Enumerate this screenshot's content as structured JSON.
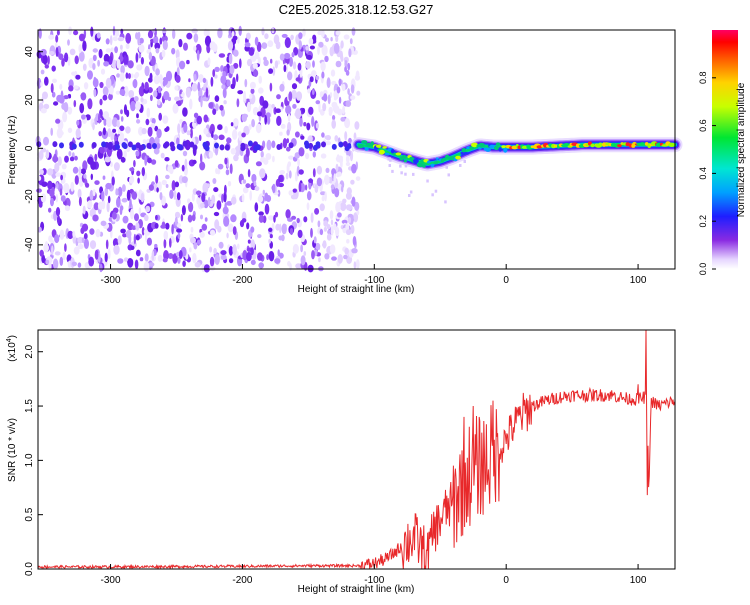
{
  "title": "C2E5.2025.318.12.53.G27",
  "chart_data": [
    {
      "type": "heatmap",
      "title": "C2E5.2025.318.12.53.G27",
      "xlabel": "Height of straight line (km)",
      "ylabel": "Frequency (Hz)",
      "xlim": [
        -355,
        128
      ],
      "ylim": [
        -50,
        49
      ],
      "xticks": [
        -300,
        -200,
        -100,
        0,
        100
      ],
      "yticks": [
        -40,
        -20,
        0,
        20,
        40
      ],
      "noise_region_km": [
        -355,
        -112
      ],
      "signal_region_km": [
        -112,
        128
      ],
      "frequency_track": {
        "x": [
          -112,
          -100,
          -90,
          -80,
          -70,
          -60,
          -50,
          -40,
          -30,
          -20,
          -10,
          0,
          20,
          40,
          60,
          80,
          100,
          128
        ],
        "y": [
          1.5,
          0.5,
          -1.5,
          -3.5,
          -5,
          -6.5,
          -5.5,
          -3.5,
          -1,
          1,
          0.5,
          0.5,
          0.5,
          1,
          1.5,
          1.5,
          1.5,
          1.5
        ]
      },
      "colorbar": {
        "label": "Normalized spectral amplitude",
        "range": [
          0.0,
          1.0
        ],
        "ticks": [
          0.0,
          0.2,
          0.4,
          0.6,
          0.8
        ],
        "tick_labels": [
          "0.0",
          "0.2",
          "0.4",
          "0.6",
          "0.8"
        ]
      }
    },
    {
      "type": "line",
      "xlabel": "Height of straight line (km)",
      "ylabel": "SNR (10 * v/v)",
      "y_multiplier": "(x10",
      "y_multiplier_exp": "4",
      "y_multiplier_close": ")",
      "xlim": [
        -355,
        128
      ],
      "ylim": [
        0,
        2.2
      ],
      "xticks": [
        -300,
        -200,
        -100,
        0,
        100
      ],
      "yticks": [
        0.0,
        0.5,
        1.0,
        1.5,
        2.0
      ],
      "series": [
        {
          "name": "SNR",
          "color": "#e8282a",
          "x": [
            -355,
            -300,
            -200,
            -150,
            -110,
            -100,
            -90,
            -80,
            -70,
            -60,
            -55,
            -50,
            -45,
            -40,
            -35,
            -30,
            -25,
            -20,
            -15,
            -10,
            -5,
            0,
            10,
            20,
            30,
            40,
            50,
            60,
            70,
            80,
            90,
            100,
            105,
            107,
            108,
            110,
            115,
            120,
            128
          ],
          "y": [
            0.02,
            0.02,
            0.025,
            0.03,
            0.03,
            0.05,
            0.1,
            0.2,
            0.3,
            0.12,
            0.35,
            0.45,
            0.55,
            0.6,
            0.75,
            0.85,
            0.9,
            0.95,
            1.0,
            1.05,
            1.1,
            1.2,
            1.4,
            1.5,
            1.55,
            1.58,
            1.6,
            1.6,
            1.6,
            1.6,
            1.57,
            1.56,
            1.58,
            1.5,
            0.7,
            1.55,
            1.5,
            1.52,
            1.55
          ]
        }
      ],
      "peaks": [
        {
          "x": -32,
          "y": 1.4
        },
        {
          "x": -25,
          "y": 1.5
        },
        {
          "x": -10,
          "y": 1.55
        },
        {
          "x": 100,
          "y": 1.7
        },
        {
          "x": 106,
          "y": 2.2
        },
        {
          "x": 107,
          "y": 0.68
        }
      ]
    }
  ]
}
